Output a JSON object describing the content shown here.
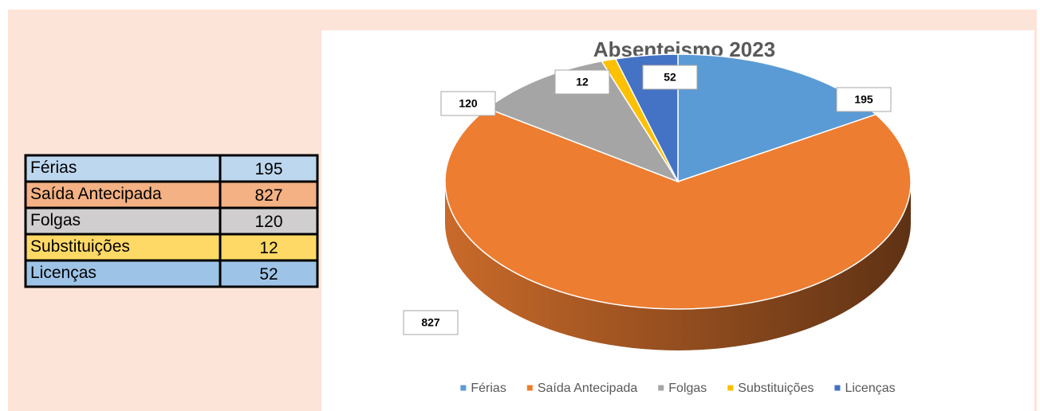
{
  "chart_data": {
    "type": "pie",
    "title": "Absenteismo 2023",
    "categories": [
      "Férias",
      "Saída Antecipada",
      "Folgas",
      "Substituições",
      "Licenças"
    ],
    "values": [
      195,
      827,
      120,
      12,
      52
    ],
    "colors": [
      "#5b9bd5",
      "#ed7d31",
      "#a5a5a5",
      "#ffc000",
      "#4472c4"
    ],
    "table_colors": [
      "#bdd7ee",
      "#f4b183",
      "#d0cece",
      "#ffd966",
      "#9dc3e6"
    ],
    "legend": "bottom"
  }
}
